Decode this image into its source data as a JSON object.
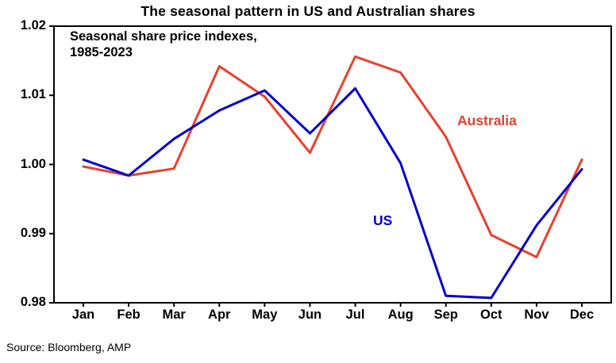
{
  "title": "The seasonal pattern in US and Australian shares",
  "annotation": {
    "line1": "Seasonal share price indexes,",
    "line2": "1985-2023"
  },
  "source": "Source: Bloomberg, AMP",
  "series_labels": {
    "australia": "Australia",
    "us": "US"
  },
  "colors": {
    "us": "#0000CC",
    "australia": "#E8402C"
  },
  "chart_data": {
    "type": "line",
    "title": "The seasonal pattern in US and Australian shares",
    "subtitle": "Seasonal share price indexes, 1985-2023",
    "categories": [
      "Jan",
      "Feb",
      "Mar",
      "Apr",
      "May",
      "Jun",
      "Jul",
      "Aug",
      "Sep",
      "Oct",
      "Nov",
      "Dec"
    ],
    "series": [
      {
        "name": "Australia",
        "color_key": "australia",
        "values": [
          0.9997,
          0.9984,
          0.9994,
          1.0142,
          1.0098,
          1.0017,
          1.0156,
          1.0133,
          1.004,
          0.9898,
          0.9866,
          1.0007
        ]
      },
      {
        "name": "US",
        "color_key": "us",
        "values": [
          1.0007,
          0.9984,
          1.0037,
          1.0078,
          1.0107,
          1.0045,
          1.011,
          1.0002,
          0.981,
          0.9807,
          0.9912,
          0.9993
        ]
      }
    ],
    "ylim": [
      0.98,
      1.02
    ],
    "yticks": [
      0.98,
      0.99,
      1.0,
      1.01,
      1.02
    ],
    "ytick_format_decimals": 2,
    "xlabel": "",
    "ylabel": "",
    "grid": false,
    "legend": "inline-labels"
  }
}
